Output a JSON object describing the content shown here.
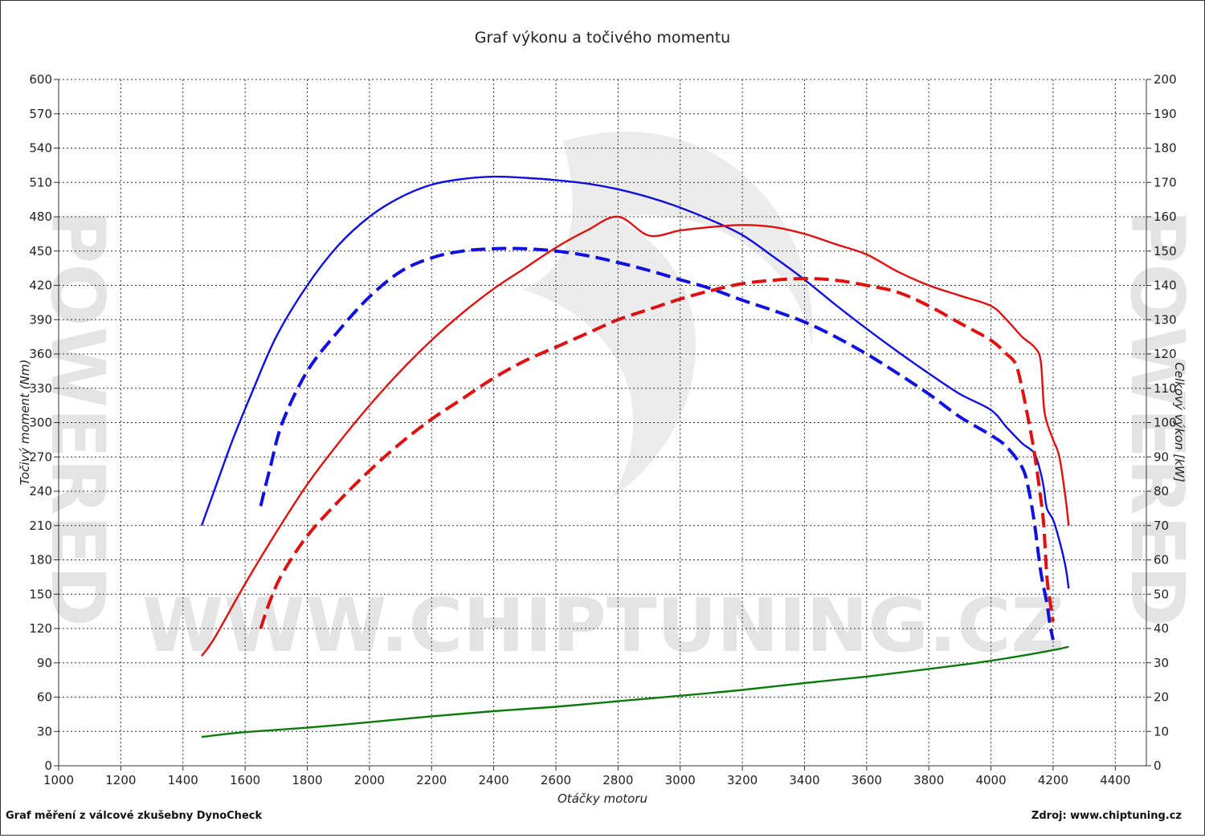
{
  "chart_data": {
    "type": "line",
    "title": "Graf výkonu a točivého momentu",
    "xlabel": "Otáčky motoru",
    "ylabel_left": "Točivý moment (Nm)",
    "ylabel_right": "Celkový výkon [kW]",
    "xlim": [
      1000,
      4500
    ],
    "xticks": [
      1000,
      1200,
      1400,
      1600,
      1800,
      2000,
      2200,
      2400,
      2600,
      2800,
      3000,
      3200,
      3400,
      3600,
      3800,
      4000,
      4200,
      4400
    ],
    "ylim_left": [
      0,
      600
    ],
    "yticks_left": [
      0,
      30,
      60,
      90,
      120,
      150,
      180,
      210,
      240,
      270,
      300,
      330,
      360,
      390,
      420,
      450,
      480,
      510,
      540,
      570,
      600
    ],
    "ylim_right": [
      0,
      200
    ],
    "yticks_right": [
      0,
      10,
      20,
      30,
      40,
      50,
      60,
      70,
      80,
      90,
      100,
      110,
      120,
      130,
      140,
      150,
      160,
      170,
      180,
      190,
      200
    ],
    "grid": true,
    "series": [
      {
        "color": "#1010e0",
        "style": "solid",
        "axis": "left",
        "x": [
          1460,
          1500,
          1560,
          1620,
          1700,
          1800,
          1900,
          2000,
          2100,
          2200,
          2300,
          2400,
          2500,
          2600,
          2700,
          2800,
          2900,
          3000,
          3100,
          3200,
          3300,
          3400,
          3500,
          3600,
          3700,
          3800,
          3900,
          4000,
          4050,
          4100,
          4140,
          4160,
          4170,
          4180,
          4200,
          4220,
          4240,
          4250
        ],
        "y": [
          210,
          240,
          285,
          325,
          375,
          420,
          455,
          480,
          497,
          508,
          513,
          515,
          514,
          512,
          509,
          504,
          497,
          488,
          477,
          464,
          445,
          425,
          403,
          382,
          362,
          343,
          325,
          311,
          296,
          282,
          273,
          256,
          243,
          225,
          215,
          197,
          174,
          155
        ]
      },
      {
        "color": "#1010e0",
        "style": "dashed",
        "axis": "left",
        "x": [
          1650,
          1680,
          1720,
          1800,
          1900,
          2000,
          2100,
          2200,
          2300,
          2400,
          2500,
          2600,
          2700,
          2800,
          2900,
          3000,
          3100,
          3200,
          3300,
          3400,
          3500,
          3600,
          3700,
          3800,
          3900,
          4000,
          4050,
          4100,
          4120,
          4140,
          4160,
          4180,
          4190,
          4200
        ],
        "y": [
          227,
          260,
          300,
          345,
          380,
          410,
          432,
          444,
          450,
          452,
          452,
          450,
          446,
          440,
          433,
          425,
          417,
          407,
          398,
          388,
          375,
          360,
          343,
          325,
          305,
          289,
          279,
          261,
          243,
          212,
          170,
          142,
          123,
          110
        ]
      },
      {
        "color": "#e01010",
        "style": "solid",
        "axis": "right",
        "x": [
          1460,
          1500,
          1600,
          1700,
          1800,
          1900,
          2000,
          2100,
          2200,
          2300,
          2400,
          2500,
          2600,
          2700,
          2800,
          2900,
          3000,
          3100,
          3200,
          3300,
          3400,
          3500,
          3600,
          3700,
          3800,
          3900,
          4000,
          4050,
          4100,
          4140,
          4160,
          4170,
          4180,
          4200,
          4220,
          4240,
          4250
        ],
        "y": [
          32,
          37,
          53,
          68,
          82,
          94,
          105,
          115,
          124,
          132,
          139,
          145,
          151,
          156,
          160,
          154.5,
          156,
          157,
          157.6,
          157,
          155,
          152,
          149,
          144,
          140,
          137,
          134,
          130,
          125,
          122,
          118,
          105,
          100,
          95,
          90,
          78,
          70
        ]
      },
      {
        "color": "#e01010",
        "style": "dashed",
        "axis": "right",
        "x": [
          1650,
          1680,
          1720,
          1800,
          1900,
          2000,
          2100,
          2200,
          2300,
          2400,
          2500,
          2600,
          2700,
          2800,
          2900,
          3000,
          3100,
          3200,
          3300,
          3400,
          3500,
          3600,
          3700,
          3800,
          3900,
          4000,
          4050,
          4080,
          4100,
          4120,
          4140,
          4160,
          4170,
          4180,
          4190,
          4200
        ],
        "y": [
          40,
          48,
          56,
          67,
          77,
          86,
          94,
          101,
          107,
          113,
          118,
          122,
          126,
          130,
          133,
          136,
          138.5,
          140.5,
          141.5,
          142,
          141.5,
          140,
          138,
          134,
          129,
          124,
          120,
          117,
          110,
          101,
          91,
          78,
          70,
          55,
          48,
          42
        ]
      },
      {
        "color": "#0c7a0c",
        "style": "solid",
        "axis": "right",
        "x": [
          1460,
          1600,
          1800,
          2000,
          2200,
          2400,
          2600,
          2800,
          3000,
          3200,
          3400,
          3600,
          3800,
          4000,
          4200,
          4250
        ],
        "y": [
          8.4,
          9.8,
          11.1,
          12.7,
          14.4,
          15.9,
          17.2,
          18.8,
          20.4,
          22.1,
          24.1,
          26,
          28.2,
          30.6,
          33.7,
          34.7
        ]
      }
    ]
  },
  "footer": {
    "left": "Graf měření z válcové zkušebny DynoCheck",
    "right": "Zdroj: www.chiptuning.cz"
  },
  "watermark": {
    "url": "WWW.CHIPTUNING.CZ",
    "side": "POWERED"
  }
}
